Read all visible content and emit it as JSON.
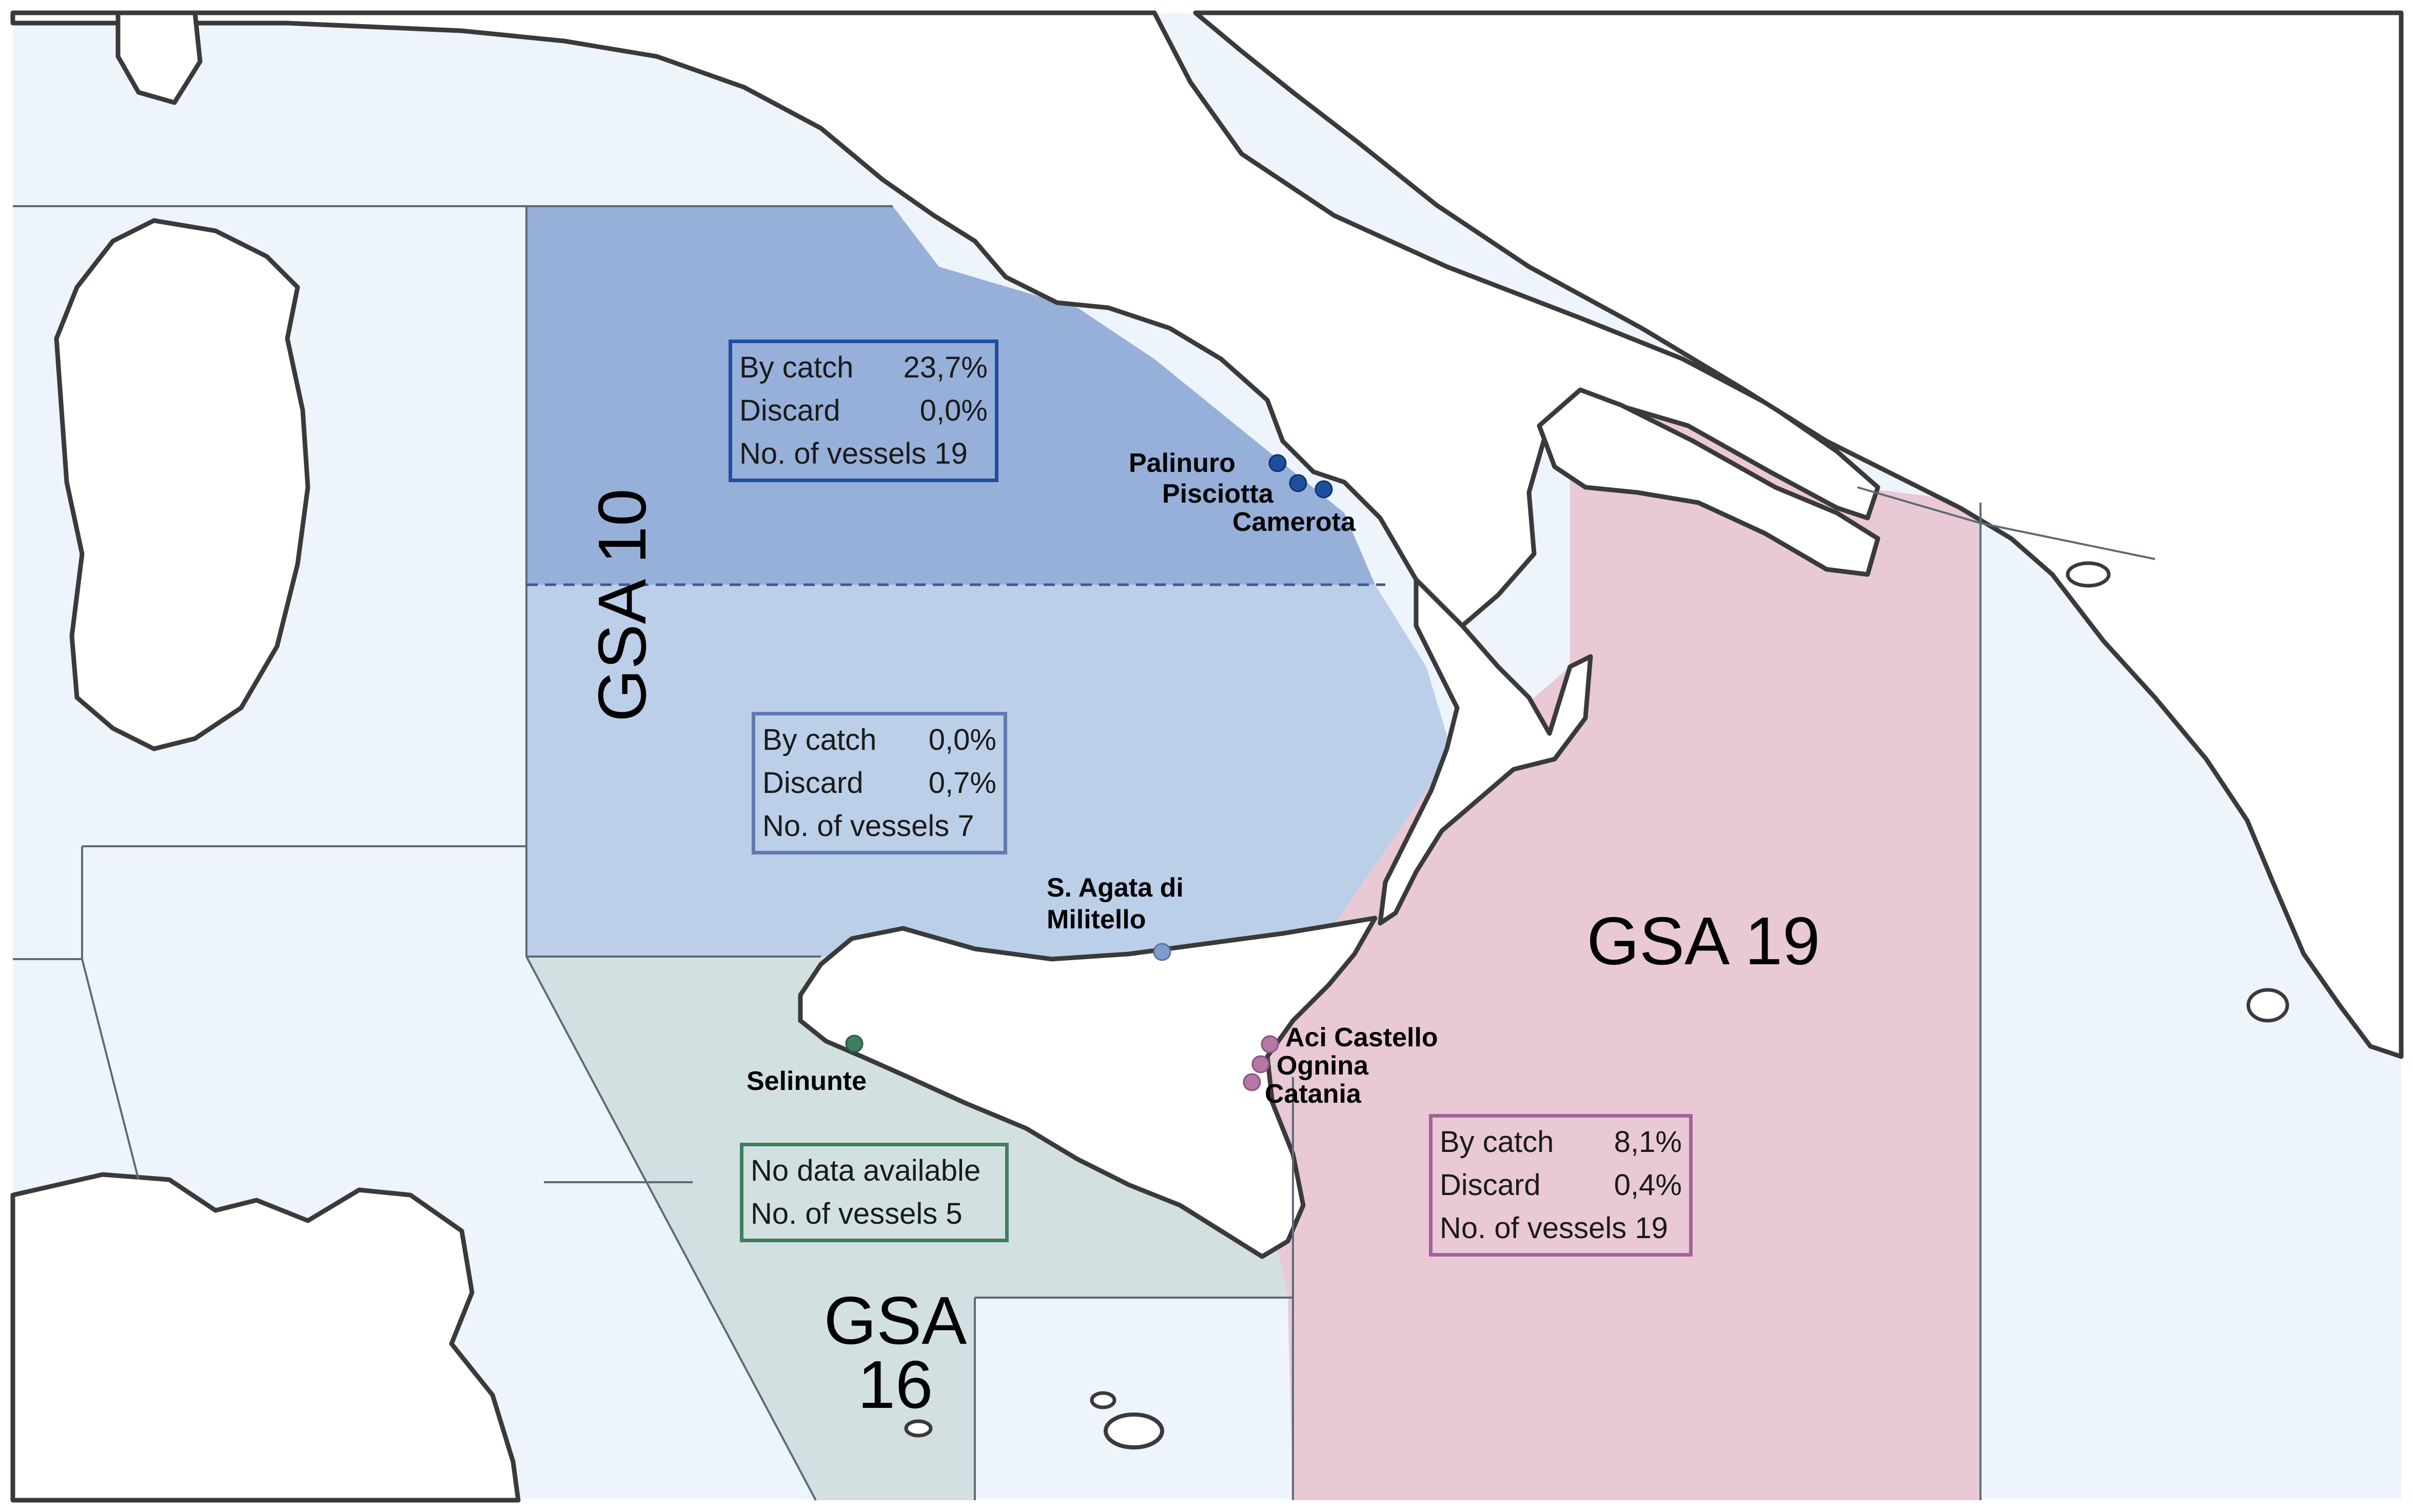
{
  "colors": {
    "sea": "#eef4fb",
    "land": "#ffffff",
    "gsa10_north": "#96b0da",
    "gsa10_south": "#bccfe9",
    "gsa16": "#d2e0e1",
    "gsa19": "#e9c9d6",
    "box_gsa10_north": "#1f4e9e",
    "box_gsa10_south": "#6079b0",
    "box_gsa16": "#3f7f5e",
    "box_gsa19": "#a5639a",
    "dot_gsa10_north": "#1f4e9e",
    "dot_gsa10_south": "#7f9ccc",
    "dot_gsa16": "#3f7f5e",
    "dot_gsa19": "#b477a6"
  },
  "regions": {
    "gsa10": {
      "label": "GSA 10",
      "north_box": {
        "bycatch_label": "By catch",
        "bycatch_value": "23,7%",
        "discard_label": "Discard",
        "discard_value": "0,0%",
        "vessels": "No. of vessels 19"
      },
      "south_box": {
        "bycatch_label": "By catch",
        "bycatch_value": "0,0%",
        "discard_label": "Discard",
        "discard_value": "0,7%",
        "vessels": "No. of vessels 7"
      }
    },
    "gsa16": {
      "label_line1": "GSA",
      "label_line2": "16",
      "box": {
        "nodata": "No data available",
        "vessels": "No. of vessels 5"
      }
    },
    "gsa19": {
      "label": "GSA 19",
      "box": {
        "bycatch_label": "By catch",
        "bycatch_value": "8,1%",
        "discard_label": "Discard",
        "discard_value": "0,4%",
        "vessels": "No. of vessels 19"
      }
    }
  },
  "places": {
    "palinuro": "Palinuro",
    "pisciotta": "Pisciotta",
    "camerota": "Camerota",
    "sagata_line1": "S. Agata di",
    "sagata_line2": "Militello",
    "selinunte": "Selinunte",
    "aci_castello": "Aci Castello",
    "ognina": "Ognina",
    "catania": "Catania"
  }
}
